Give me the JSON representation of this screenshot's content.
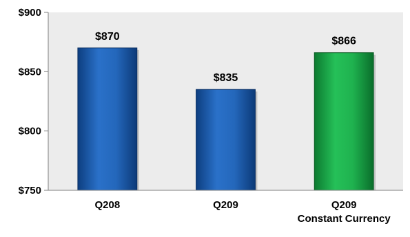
{
  "chart_data": {
    "type": "bar",
    "categories": [
      [
        "Q208"
      ],
      [
        "Q209"
      ],
      [
        "Q209",
        "Constant Currency"
      ]
    ],
    "values": [
      870,
      835,
      866
    ],
    "data_labels": [
      "$870",
      "$835",
      "$866"
    ],
    "bar_colors": [
      "#1f5fb0",
      "#1f5fb0",
      "#1aa548"
    ],
    "ylim": [
      750,
      900
    ],
    "yticks": [
      750,
      800,
      850,
      900
    ],
    "ytick_labels": [
      "$750",
      "$800",
      "$850",
      "$900"
    ],
    "plot_background": "#ececec",
    "grid": false,
    "title": "",
    "xlabel": "",
    "ylabel": ""
  }
}
